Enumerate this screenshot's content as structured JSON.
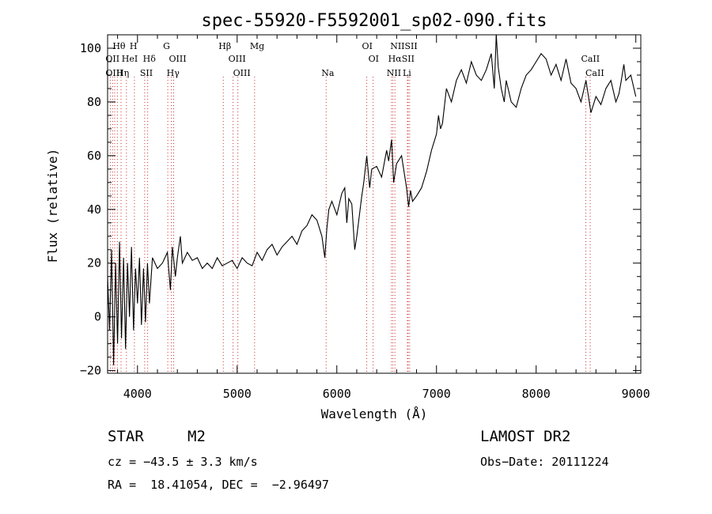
{
  "chart_data": {
    "type": "line",
    "title": "spec-55920-F5592001_sp02-090.fits",
    "xlabel": "Wavelength (Å)",
    "ylabel": "Flux (relative)",
    "xlim": [
      3700,
      9050
    ],
    "ylim": [
      -21,
      105
    ],
    "xticks": [
      4000,
      5000,
      6000,
      7000,
      8000,
      9000
    ],
    "yticks": [
      -20,
      0,
      20,
      40,
      60,
      80,
      100
    ],
    "series": [
      {
        "name": "flux",
        "x": [
          3700,
          3720,
          3740,
          3760,
          3780,
          3800,
          3820,
          3840,
          3860,
          3880,
          3900,
          3920,
          3940,
          3960,
          3980,
          4000,
          4020,
          4040,
          4060,
          4080,
          4100,
          4120,
          4150,
          4200,
          4250,
          4300,
          4330,
          4350,
          4380,
          4400,
          4430,
          4450,
          4500,
          4550,
          4600,
          4650,
          4700,
          4750,
          4800,
          4850,
          4900,
          4950,
          5000,
          5050,
          5100,
          5150,
          5200,
          5250,
          5300,
          5350,
          5400,
          5450,
          5500,
          5550,
          5600,
          5650,
          5700,
          5750,
          5800,
          5850,
          5880,
          5900,
          5920,
          5950,
          6000,
          6050,
          6080,
          6100,
          6120,
          6150,
          6180,
          6200,
          6250,
          6270,
          6300,
          6330,
          6350,
          6400,
          6450,
          6500,
          6520,
          6550,
          6570,
          6600,
          6650,
          6700,
          6720,
          6740,
          6760,
          6800,
          6850,
          6900,
          6950,
          7000,
          7020,
          7040,
          7060,
          7100,
          7150,
          7200,
          7250,
          7300,
          7350,
          7400,
          7450,
          7500,
          7550,
          7580,
          7600,
          7620,
          7650,
          7680,
          7700,
          7750,
          7800,
          7850,
          7900,
          7950,
          8000,
          8050,
          8100,
          8150,
          8200,
          8250,
          8300,
          8350,
          8400,
          8450,
          8500,
          8550,
          8600,
          8650,
          8700,
          8750,
          8800,
          8830,
          8850,
          8880,
          8900,
          8950,
          9000
        ],
        "y": [
          15,
          -5,
          25,
          -18,
          20,
          -10,
          28,
          -8,
          22,
          -12,
          20,
          0,
          26,
          -5,
          18,
          5,
          22,
          -3,
          18,
          -2,
          20,
          5,
          22,
          18,
          20,
          24,
          10,
          26,
          15,
          22,
          30,
          20,
          24,
          21,
          22,
          18,
          20,
          18,
          22,
          19,
          20,
          21,
          18,
          22,
          20,
          19,
          24,
          21,
          25,
          27,
          23,
          26,
          28,
          30,
          27,
          32,
          34,
          38,
          36,
          30,
          22,
          33,
          40,
          43,
          38,
          46,
          48,
          35,
          44,
          42,
          25,
          30,
          45,
          50,
          60,
          48,
          55,
          56,
          52,
          62,
          58,
          66,
          50,
          57,
          60,
          48,
          41,
          47,
          43,
          45,
          48,
          54,
          62,
          68,
          75,
          70,
          72,
          85,
          80,
          88,
          92,
          87,
          95,
          90,
          88,
          92,
          98,
          85,
          105,
          93,
          85,
          80,
          88,
          80,
          78,
          85,
          90,
          92,
          95,
          98,
          96,
          90,
          94,
          88,
          96,
          87,
          85,
          80,
          88,
          76,
          82,
          79,
          85,
          88,
          80,
          83,
          87,
          94,
          88,
          90,
          82
        ]
      }
    ],
    "lines": [
      {
        "label": "Hθ",
        "row": 0,
        "x": 3798
      },
      {
        "label": "H",
        "row": 0,
        "x": 3969
      },
      {
        "label": "G",
        "row": 0,
        "x": 4304
      },
      {
        "label": "Hβ",
        "row": 0,
        "x": 4861
      },
      {
        "label": "Mg",
        "row": 0,
        "x": 5175
      },
      {
        "label": "OI",
        "row": 0,
        "x": 6300
      },
      {
        "label": "NIISII",
        "row": 0,
        "x": 6583
      },
      {
        "label": "OII",
        "row": 1,
        "x": 3727
      },
      {
        "label": "HeI",
        "row": 1,
        "x": 3889
      },
      {
        "label": "Hδ",
        "row": 1,
        "x": 4102
      },
      {
        "label": "OIII",
        "row": 1,
        "x": 4363
      },
      {
        "label": "OIII",
        "row": 1,
        "x": 4959
      },
      {
        "label": "OI",
        "row": 1,
        "x": 6364
      },
      {
        "label": "HαSII",
        "row": 1,
        "x": 6563
      },
      {
        "label": "CaII",
        "row": 1,
        "x": 8498
      },
      {
        "label": "OIII",
        "row": 2,
        "x": 3727
      },
      {
        "label": "Hη",
        "row": 2,
        "x": 3835
      },
      {
        "label": "SII",
        "row": 2,
        "x": 4072
      },
      {
        "label": "Hγ",
        "row": 2,
        "x": 4340
      },
      {
        "label": "OIII",
        "row": 2,
        "x": 5007
      },
      {
        "label": "Na",
        "row": 2,
        "x": 5893
      },
      {
        "label": "NII",
        "row": 2,
        "x": 6548
      },
      {
        "label": "Li",
        "row": 2,
        "x": 6708
      },
      {
        "label": "CaII",
        "row": 2,
        "x": 8542
      }
    ],
    "marker_lines": [
      3727,
      3750,
      3771,
      3798,
      3835,
      3889,
      3969,
      4072,
      4102,
      4304,
      4340,
      4363,
      4861,
      4959,
      5007,
      5175,
      5893,
      6300,
      6364,
      6548,
      6563,
      6583,
      6708,
      6716,
      6731,
      8498,
      8542
    ]
  },
  "info": {
    "type_label": "STAR",
    "subclass": "M2",
    "survey": "LAMOST DR2",
    "cz": "cz = −43.5 ± 3.3 km/s",
    "obs_date": "Obs−Date: 20111224",
    "coords": "RA =  18.41054, DEC =  −2.96497"
  }
}
